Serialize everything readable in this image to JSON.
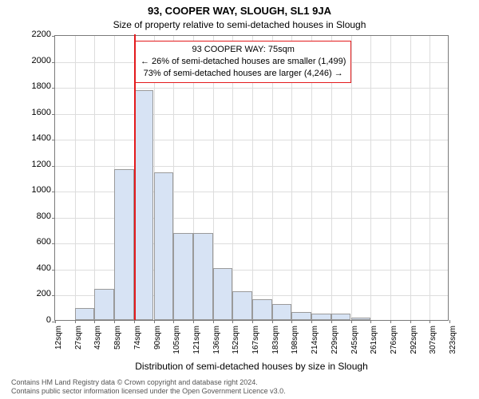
{
  "title": "93, COOPER WAY, SLOUGH, SL1 9JA",
  "subtitle": "Size of property relative to semi-detached houses in Slough",
  "y_axis": {
    "label": "Number of semi-detached properties",
    "min": 0,
    "max": 2200,
    "tick_step": 200,
    "ticks": [
      0,
      200,
      400,
      600,
      800,
      1000,
      1200,
      1400,
      1600,
      1800,
      2000,
      2200
    ]
  },
  "x_axis": {
    "label": "Distribution of semi-detached houses by size in Slough",
    "min": 12,
    "max": 323,
    "tick_step": 15.55,
    "tick_labels": [
      "12sqm",
      "27sqm",
      "43sqm",
      "58sqm",
      "74sqm",
      "90sqm",
      "105sqm",
      "121sqm",
      "136sqm",
      "152sqm",
      "167sqm",
      "183sqm",
      "198sqm",
      "214sqm",
      "229sqm",
      "245sqm",
      "261sqm",
      "276sqm",
      "292sqm",
      "307sqm",
      "323sqm"
    ]
  },
  "histogram": {
    "bin_width": 15.55,
    "bar_color": "#d7e3f4",
    "bar_border_color": "#9a9a9a",
    "values": [
      0,
      90,
      240,
      1160,
      1770,
      1140,
      670,
      670,
      400,
      220,
      160,
      120,
      60,
      50,
      50,
      20,
      0,
      0,
      0,
      0
    ]
  },
  "marker": {
    "value": 75,
    "color": "#e31a1c"
  },
  "annotation": {
    "border_color": "#e31a1c",
    "lines": [
      "93 COOPER WAY: 75sqm",
      "← 26% of semi-detached houses are smaller (1,499)",
      "73% of semi-detached houses are larger (4,246) →"
    ]
  },
  "grid_color": "#dddddd",
  "plot_border_color": "#7a7a7a",
  "footer": {
    "line1": "Contains HM Land Registry data © Crown copyright and database right 2024.",
    "line2": "Contains public sector information licensed under the Open Government Licence v3.0."
  }
}
